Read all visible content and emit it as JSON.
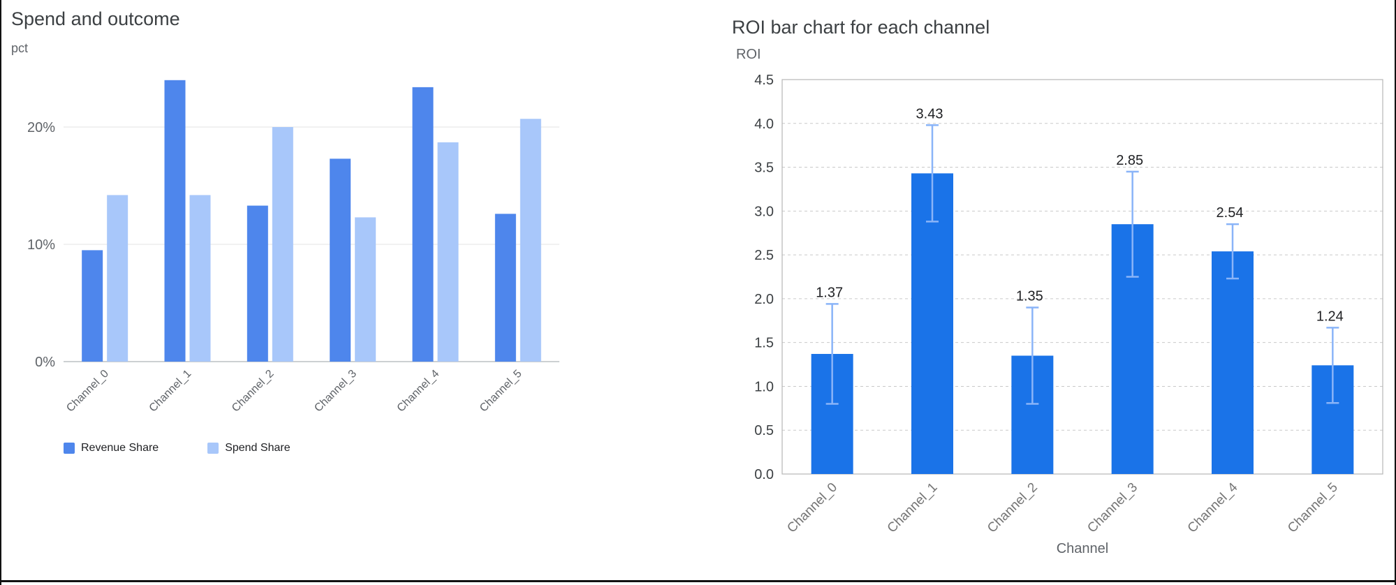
{
  "page": {
    "background": "#ffffff"
  },
  "chart_data": [
    {
      "type": "bar",
      "title": "Spend and outcome",
      "xlabel": "",
      "ylabel": "pct",
      "categories": [
        "Channel_0",
        "Channel_1",
        "Channel_2",
        "Channel_3",
        "Channel_4",
        "Channel_5"
      ],
      "series": [
        {
          "name": "Revenue Share",
          "color": "#4e86ec",
          "values": [
            9.5,
            24.0,
            13.3,
            17.3,
            23.4,
            12.6
          ]
        },
        {
          "name": "Spend Share",
          "color": "#a8c7fa",
          "values": [
            14.2,
            14.2,
            20.0,
            12.3,
            18.7,
            20.7
          ]
        }
      ],
      "ylim": [
        0,
        25
      ],
      "yticks": [
        0,
        10,
        20
      ],
      "ytick_format": "percent",
      "grid": true,
      "legend_position": "bottom"
    },
    {
      "type": "bar",
      "title": "ROI bar chart for each channel",
      "xlabel": "Channel",
      "ylabel": "ROI",
      "categories": [
        "Channel_0",
        "Channel_1",
        "Channel_2",
        "Channel_3",
        "Channel_4",
        "Channel_5"
      ],
      "values": [
        1.37,
        3.43,
        1.35,
        2.85,
        2.54,
        1.24
      ],
      "errors": [
        0.57,
        0.55,
        0.55,
        0.6,
        0.31,
        0.43
      ],
      "data_labels": [
        "1.37",
        "3.43",
        "1.35",
        "2.85",
        "2.54",
        "1.24"
      ],
      "bar_color": "#1a73e8",
      "error_color": "#8ab4f8",
      "ylim": [
        0,
        4.5
      ],
      "ytick_step": 0.5,
      "grid": "dashed",
      "legend_position": "none"
    }
  ]
}
